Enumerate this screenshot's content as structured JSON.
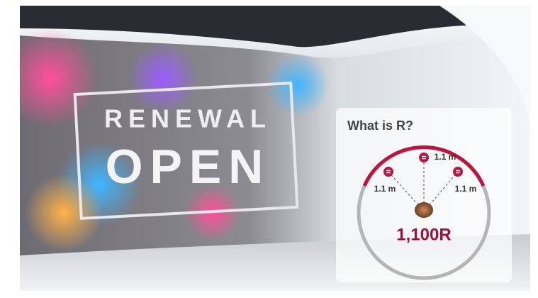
{
  "sign": {
    "line1": "RENEWAL",
    "line2": "OPEN"
  },
  "card": {
    "title": "What is R?",
    "distances": [
      "1.1 m",
      "1.1 m",
      "1.1 m"
    ],
    "radius_label": "1,100R"
  }
}
